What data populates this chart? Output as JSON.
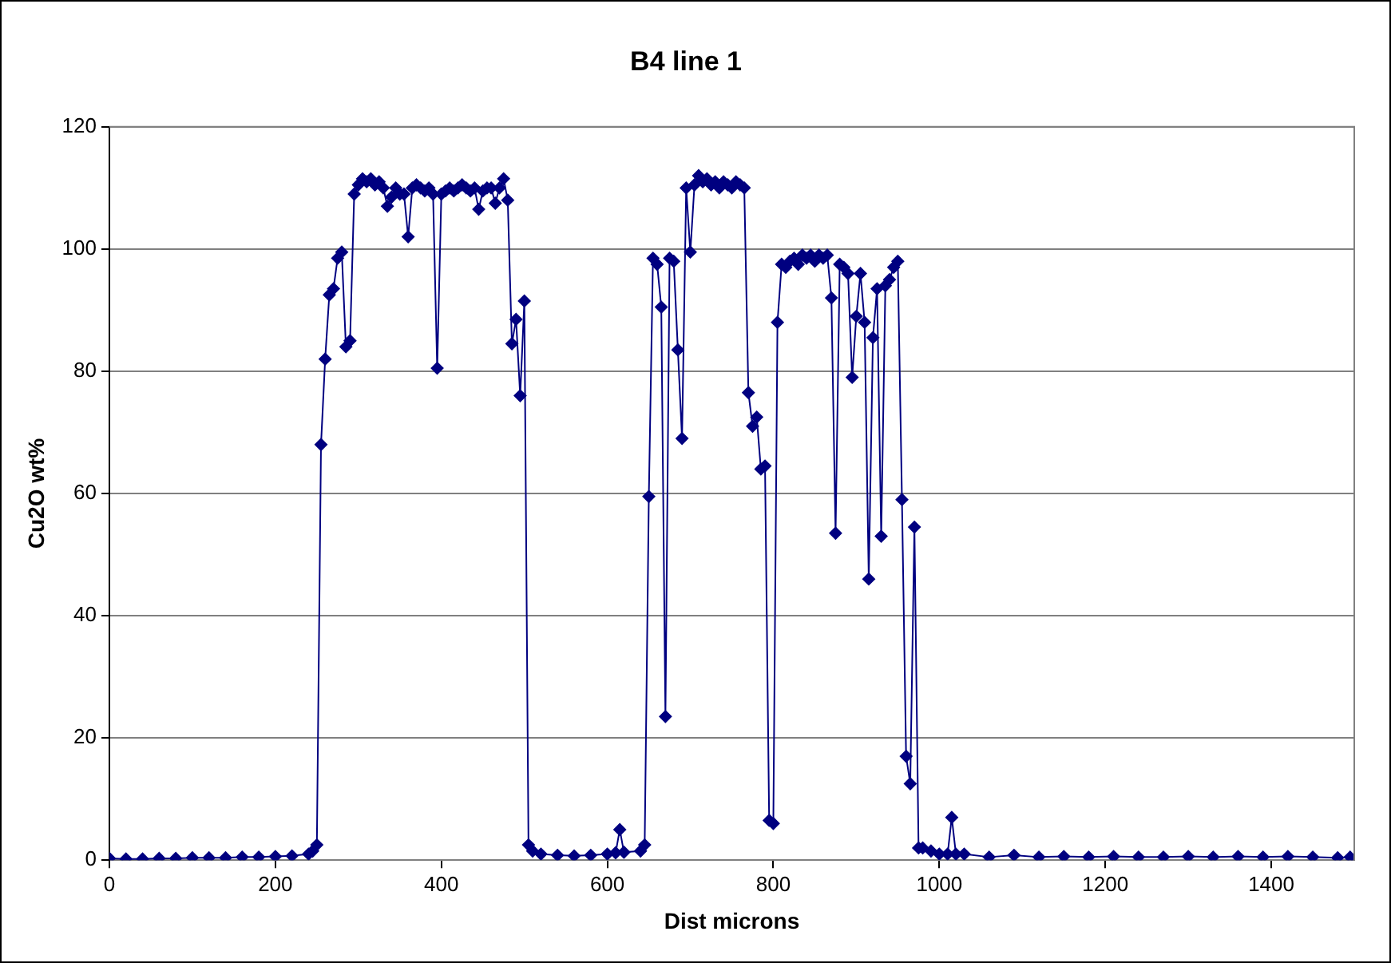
{
  "chart_data": {
    "type": "line",
    "title": "B4 line 1",
    "xlabel": "Dist microns",
    "ylabel": "Cu2O wt%",
    "xlim": [
      0,
      1500
    ],
    "xticks": [
      0,
      200,
      400,
      600,
      800,
      1000,
      1200,
      1400
    ],
    "ylim": [
      0,
      120
    ],
    "yticks": [
      0,
      20,
      40,
      60,
      80,
      100,
      120
    ],
    "grid": "y",
    "legend": false,
    "marker": "diamond",
    "line_style": "solid",
    "series": [
      {
        "color": "#000080",
        "x": [
          0,
          20,
          40,
          60,
          80,
          100,
          120,
          140,
          160,
          180,
          200,
          220,
          240,
          245,
          250,
          255,
          260,
          265,
          270,
          275,
          280,
          285,
          290,
          295,
          300,
          305,
          310,
          315,
          320,
          325,
          330,
          335,
          340,
          345,
          350,
          355,
          360,
          365,
          370,
          375,
          380,
          385,
          390,
          395,
          400,
          405,
          410,
          415,
          420,
          425,
          430,
          435,
          440,
          445,
          450,
          455,
          460,
          465,
          470,
          475,
          480,
          485,
          490,
          495,
          500,
          505,
          510,
          520,
          540,
          560,
          580,
          600,
          610,
          615,
          620,
          640,
          645,
          650,
          655,
          660,
          665,
          670,
          675,
          680,
          685,
          690,
          695,
          700,
          705,
          710,
          715,
          720,
          725,
          730,
          735,
          740,
          745,
          750,
          755,
          760,
          765,
          770,
          775,
          780,
          785,
          790,
          795,
          800,
          805,
          810,
          815,
          820,
          825,
          830,
          835,
          840,
          845,
          850,
          855,
          860,
          865,
          870,
          875,
          880,
          885,
          890,
          895,
          900,
          905,
          910,
          915,
          920,
          925,
          930,
          935,
          940,
          945,
          950,
          955,
          960,
          965,
          970,
          975,
          980,
          990,
          1000,
          1010,
          1015,
          1020,
          1030,
          1060,
          1090,
          1120,
          1150,
          1180,
          1210,
          1240,
          1270,
          1300,
          1330,
          1360,
          1390,
          1420,
          1450,
          1480,
          1495
        ],
        "values": [
          0.3,
          0.2,
          0.2,
          0.3,
          0.3,
          0.4,
          0.4,
          0.4,
          0.5,
          0.5,
          0.6,
          0.7,
          1,
          1.5,
          2.5,
          68,
          82,
          92.5,
          93.5,
          98.5,
          99.5,
          84,
          85,
          109,
          110.5,
          111.5,
          111,
          111.5,
          110.5,
          111,
          110,
          107,
          108.5,
          110,
          109,
          109,
          102,
          110,
          110.5,
          110,
          109.5,
          110,
          109,
          80.5,
          109,
          109.5,
          110,
          109.5,
          110,
          110.5,
          110,
          109.5,
          110,
          106.5,
          109.5,
          110,
          110,
          107.5,
          110,
          111.5,
          108,
          84.5,
          88.5,
          76,
          91.5,
          2.5,
          1.5,
          1,
          0.8,
          0.7,
          0.8,
          1,
          1.2,
          5,
          1.3,
          1.5,
          2.5,
          59.5,
          98.5,
          97.5,
          90.5,
          23.5,
          98.5,
          98,
          83.5,
          69,
          110,
          99.5,
          110.5,
          112,
          111,
          111.5,
          110.5,
          111,
          110,
          111,
          110.5,
          110,
          111,
          110.5,
          110,
          76.5,
          71,
          72.5,
          64,
          64.5,
          6.5,
          6,
          88,
          97.5,
          97,
          98,
          98.5,
          97.5,
          99,
          98.5,
          99,
          98,
          99,
          98.5,
          99,
          92,
          53.5,
          97.5,
          97,
          96,
          79,
          89,
          96,
          88,
          46,
          85.5,
          93.5,
          53,
          94,
          95,
          97,
          98,
          59,
          17,
          12.5,
          54.5,
          2,
          2,
          1.5,
          1,
          1,
          7,
          1,
          1,
          0.5,
          0.8,
          0.5,
          0.6,
          0.5,
          0.6,
          0.5,
          0.5,
          0.6,
          0.5,
          0.6,
          0.5,
          0.6,
          0.5,
          0.4,
          0.5
        ]
      }
    ]
  }
}
